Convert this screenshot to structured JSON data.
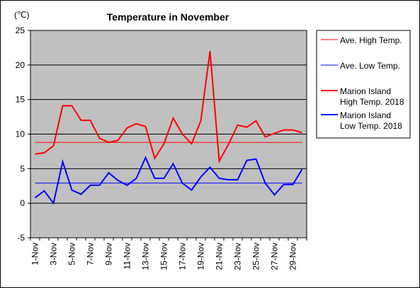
{
  "chart_data": {
    "type": "line",
    "title": "Temperature in November",
    "unit_label": "(℃)",
    "xlabel": "",
    "ylabel": "",
    "ylim": [
      -5,
      25
    ],
    "yticks": [
      -5,
      0,
      5,
      10,
      15,
      20,
      25
    ],
    "grid": true,
    "legend_position": "right",
    "categories": [
      "1-Nov",
      "2-Nov",
      "3-Nov",
      "4-Nov",
      "5-Nov",
      "6-Nov",
      "7-Nov",
      "8-Nov",
      "9-Nov",
      "10-Nov",
      "11-Nov",
      "12-Nov",
      "13-Nov",
      "14-Nov",
      "15-Nov",
      "16-Nov",
      "17-Nov",
      "18-Nov",
      "19-Nov",
      "20-Nov",
      "21-Nov",
      "22-Nov",
      "23-Nov",
      "24-Nov",
      "25-Nov",
      "26-Nov",
      "27-Nov",
      "28-Nov",
      "29-Nov",
      "30-Nov"
    ],
    "tick_labels": [
      "1-Nov",
      "3-Nov",
      "5-Nov",
      "7-Nov",
      "9-Nov",
      "11-Nov",
      "13-Nov",
      "15-Nov",
      "17-Nov",
      "19-Nov",
      "21-Nov",
      "23-Nov",
      "25-Nov",
      "27-Nov",
      "29-Nov"
    ],
    "series": [
      {
        "name": "Ave. High Temp.",
        "color": "#ff0000",
        "width": "thin",
        "values": [
          8.8,
          8.8,
          8.8,
          8.8,
          8.8,
          8.8,
          8.8,
          8.8,
          8.8,
          8.8,
          8.8,
          8.8,
          8.8,
          8.8,
          8.8,
          8.8,
          8.8,
          8.8,
          8.8,
          8.8,
          8.8,
          8.8,
          8.8,
          8.8,
          8.8,
          8.8,
          8.8,
          8.8,
          8.8,
          8.8
        ]
      },
      {
        "name": "Ave. Low Temp.",
        "color": "#0000ff",
        "width": "thin",
        "values": [
          2.9,
          2.9,
          2.9,
          2.9,
          2.9,
          2.9,
          2.9,
          2.9,
          2.9,
          2.9,
          2.9,
          2.9,
          2.9,
          2.9,
          2.9,
          2.9,
          2.9,
          2.9,
          2.9,
          2.9,
          2.9,
          2.9,
          2.9,
          2.9,
          2.9,
          2.9,
          2.9,
          2.9,
          2.9,
          2.9
        ]
      },
      {
        "name": "Marion Island High Temp. 2018",
        "label_lines": [
          "Marion Island",
          "High Temp. 2018"
        ],
        "color": "#ff0000",
        "width": "thick",
        "values": [
          7.1,
          7.3,
          8.3,
          14.1,
          14.1,
          12.0,
          12.0,
          9.4,
          8.8,
          9.1,
          10.9,
          11.5,
          11.1,
          6.5,
          8.6,
          12.3,
          10.0,
          8.6,
          11.9,
          22.0,
          6.1,
          8.5,
          11.3,
          11.0,
          11.9,
          9.6,
          10.1,
          10.6,
          10.6,
          10.2
        ]
      },
      {
        "name": "Marion Island Low Temp. 2018",
        "label_lines": [
          "Marion Island",
          "Low Temp. 2018"
        ],
        "color": "#0000ff",
        "width": "thick",
        "values": [
          0.8,
          1.8,
          0.0,
          6.0,
          1.9,
          1.3,
          2.6,
          2.6,
          4.4,
          3.3,
          2.6,
          3.6,
          6.6,
          3.6,
          3.6,
          5.7,
          2.9,
          1.9,
          3.8,
          5.2,
          3.6,
          3.4,
          3.4,
          6.2,
          6.4,
          2.9,
          1.2,
          2.7,
          2.7,
          4.9
        ]
      }
    ]
  }
}
